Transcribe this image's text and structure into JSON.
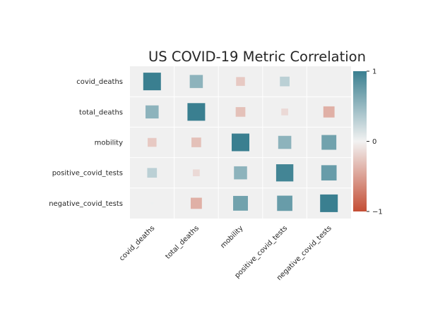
{
  "chart_data": {
    "type": "heatmap",
    "title": "US COVID-19 Metric Correlation",
    "rows": [
      "covid_deaths",
      "total_deaths",
      "mobility",
      "positive_covid_tests",
      "negative_covid_tests"
    ],
    "columns": [
      "covid_deaths",
      "total_deaths",
      "mobility",
      "positive_covid_tests",
      "negative_covid_tests"
    ],
    "values": [
      [
        1.0,
        0.55,
        -0.25,
        0.3,
        0.02
      ],
      [
        0.55,
        1.0,
        -0.3,
        -0.15,
        -0.4
      ],
      [
        -0.25,
        -0.3,
        1.0,
        0.55,
        0.7
      ],
      [
        0.3,
        -0.15,
        0.55,
        0.95,
        0.75
      ],
      [
        0.02,
        -0.4,
        0.7,
        0.75,
        1.0
      ]
    ],
    "colorbar": {
      "range": [
        -1,
        1
      ],
      "ticks": [
        {
          "value": 1,
          "label": "1"
        },
        {
          "value": 0,
          "label": "0"
        },
        {
          "value": -1,
          "label": "−1"
        }
      ],
      "low_color": "#c44e35",
      "mid_color": "#f2f2f2",
      "high_color": "#3a7f90"
    },
    "background_color": "#f0f0f0",
    "grid": true,
    "marker_size_encodes_abs_value": true
  }
}
